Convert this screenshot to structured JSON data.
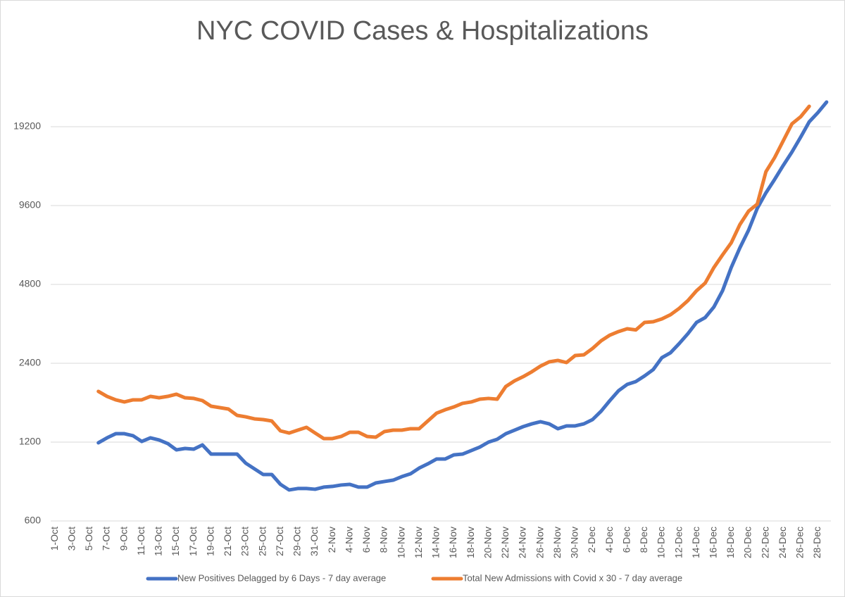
{
  "chart_data": {
    "type": "line",
    "title": "NYC COVID Cases & Hospitalizations",
    "categories": [
      "1-Oct",
      null,
      "3-Oct",
      null,
      "5-Oct",
      null,
      "7-Oct",
      null,
      "9-Oct",
      null,
      "11-Oct",
      null,
      "13-Oct",
      null,
      "15-Oct",
      null,
      "17-Oct",
      null,
      "19-Oct",
      null,
      "21-Oct",
      null,
      "23-Oct",
      null,
      "25-Oct",
      null,
      "27-Oct",
      null,
      "29-Oct",
      null,
      "31-Oct",
      null,
      "2-Nov",
      null,
      "4-Nov",
      null,
      "6-Nov",
      null,
      "8-Nov",
      null,
      "10-Nov",
      null,
      "12-Nov",
      null,
      "14-Nov",
      null,
      "16-Nov",
      null,
      "18-Nov",
      null,
      "20-Nov",
      null,
      "22-Nov",
      null,
      "24-Nov",
      null,
      "26-Nov",
      null,
      "28-Nov",
      null,
      "30-Nov",
      null,
      "2-Dec",
      null,
      "4-Dec",
      null,
      "6-Dec",
      null,
      "8-Dec",
      null,
      "10-Dec",
      null,
      "12-Dec",
      null,
      "14-Dec",
      null,
      "16-Dec",
      null,
      "18-Dec",
      null,
      "20-Dec",
      null,
      "22-Dec",
      null,
      "24-Dec",
      null,
      "26-Dec",
      null,
      "28-Dec",
      null
    ],
    "series": [
      {
        "name": "New Positives Delagged by 6 Days - 7 day average",
        "color": "#4472c4",
        "values": [
          null,
          null,
          null,
          null,
          null,
          1193,
          1246,
          1292,
          1292,
          1269,
          1207,
          1246,
          1223,
          1185,
          1121,
          1135,
          1128,
          1171,
          1080,
          1080,
          1080,
          1080,
          997,
          949,
          903,
          903,
          828,
          788,
          798,
          798,
          793,
          808,
          813,
          823,
          828,
          808,
          808,
          838,
          849,
          859,
          886,
          908,
          955,
          991,
          1034,
          1034,
          1073,
          1080,
          1114,
          1149,
          1200,
          1230,
          1292,
          1333,
          1375,
          1409,
          1436,
          1409,
          1350,
          1384,
          1384,
          1409,
          1463,
          1576,
          1729,
          1885,
          1993,
          2044,
          2147,
          2270,
          2521,
          2633,
          2854,
          3112,
          3437,
          3588,
          3937,
          4541,
          5569,
          6623,
          7730,
          9364,
          10734,
          12071,
          13662,
          15368,
          17497,
          20050,
          21734,
          23845
        ]
      },
      {
        "name": "Total New Admissions with Covid x 30 - 7 day average",
        "color": "#ed7d31",
        "values": [
          null,
          null,
          null,
          null,
          null,
          1874,
          1794,
          1740,
          1708,
          1740,
          1740,
          1794,
          1772,
          1794,
          1828,
          1772,
          1762,
          1729,
          1645,
          1625,
          1605,
          1518,
          1499,
          1472,
          1463,
          1445,
          1325,
          1300,
          1333,
          1367,
          1300,
          1238,
          1238,
          1261,
          1309,
          1309,
          1261,
          1253,
          1317,
          1333,
          1333,
          1350,
          1350,
          1445,
          1547,
          1595,
          1635,
          1687,
          1708,
          1750,
          1762,
          1750,
          1957,
          2056,
          2133,
          2228,
          2341,
          2430,
          2461,
          2415,
          2569,
          2585,
          2733,
          2926,
          3074,
          3171,
          3250,
          3218,
          3437,
          3458,
          3544,
          3679,
          3889,
          4164,
          4541,
          4861,
          5569,
          6223,
          6917,
          8123,
          9138,
          9720,
          12924,
          14623,
          16962,
          19685,
          20940,
          22975,
          null,
          null
        ]
      }
    ],
    "ylim": [
      600,
      38400
    ],
    "yticks": [
      600,
      1200,
      2400,
      4800,
      9600,
      19200
    ],
    "log_scale": true,
    "grid": true,
    "legend": "bottom"
  }
}
